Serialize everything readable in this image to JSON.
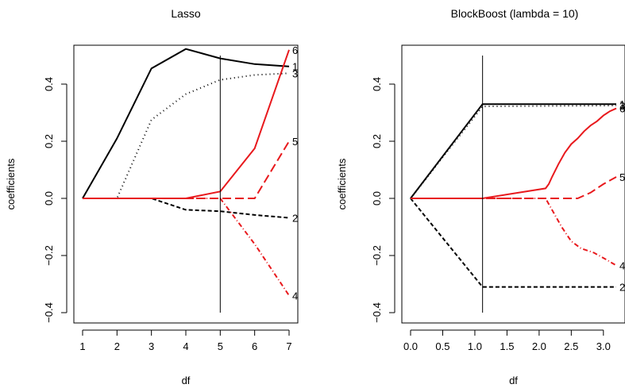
{
  "chart_data": [
    {
      "type": "line",
      "title": "Lasso",
      "xlabel": "df",
      "ylabel": "coefficients",
      "xlim": [
        1,
        7
      ],
      "ylim": [
        -0.4,
        0.5
      ],
      "xticks": [
        "1",
        "2",
        "3",
        "4",
        "5",
        "6",
        "7"
      ],
      "yticks": [
        "-0.4",
        "-0.2",
        "0.0",
        "0.2",
        "0.4"
      ],
      "vline": 5,
      "series": [
        {
          "label": "1",
          "color": "#000000",
          "dash": "solid",
          "points": [
            [
              1,
              0
            ],
            [
              2,
              0.21
            ],
            [
              3,
              0.455
            ],
            [
              4,
              0.523
            ],
            [
              5,
              0.49
            ],
            [
              6,
              0.47
            ],
            [
              7,
              0.462
            ]
          ]
        },
        {
          "label": "2",
          "color": "#000000",
          "dash": "dashed",
          "points": [
            [
              1,
              0
            ],
            [
              2,
              0
            ],
            [
              3,
              0
            ],
            [
              4,
              -0.04
            ],
            [
              5,
              -0.045
            ],
            [
              6,
              -0.058
            ],
            [
              7,
              -0.068
            ]
          ]
        },
        {
          "label": "3",
          "color": "#000000",
          "dash": "dotted",
          "points": [
            [
              1,
              0
            ],
            [
              2,
              0
            ],
            [
              3,
              0.275
            ],
            [
              4,
              0.365
            ],
            [
              5,
              0.415
            ],
            [
              6,
              0.432
            ],
            [
              7,
              0.438
            ]
          ]
        },
        {
          "label": "4",
          "color": "#e8191d",
          "dash": "dotdash",
          "points": [
            [
              1,
              0
            ],
            [
              2,
              0
            ],
            [
              3,
              0
            ],
            [
              4,
              0
            ],
            [
              5,
              0
            ],
            [
              6,
              -0.16
            ],
            [
              7,
              -0.34
            ]
          ]
        },
        {
          "label": "5",
          "color": "#e8191d",
          "dash": "longdash",
          "points": [
            [
              1,
              0
            ],
            [
              2,
              0
            ],
            [
              3,
              0
            ],
            [
              4,
              0
            ],
            [
              5,
              0
            ],
            [
              6,
              0
            ],
            [
              7,
              0.2
            ]
          ]
        },
        {
          "label": "6",
          "color": "#e8191d",
          "dash": "solid",
          "points": [
            [
              1,
              0
            ],
            [
              2,
              0
            ],
            [
              3,
              0
            ],
            [
              4,
              0
            ],
            [
              5,
              0.024
            ],
            [
              6,
              0.175
            ],
            [
              7,
              0.52
            ]
          ]
        }
      ]
    },
    {
      "type": "line",
      "title": "BlockBoost (lambda = 10)",
      "xlabel": "df",
      "ylabel": "coefficients",
      "xlim": [
        0,
        3.2
      ],
      "ylim": [
        -0.4,
        0.5
      ],
      "xticks": [
        "0.0",
        "0.5",
        "1.0",
        "1.5",
        "2.0",
        "2.5",
        "3.0"
      ],
      "yticks": [
        "-0.4",
        "-0.2",
        "0.0",
        "0.2",
        "0.4"
      ],
      "vline": 1.12,
      "series": [
        {
          "label": "1",
          "color": "#000000",
          "dash": "solid",
          "points": [
            [
              0,
              0
            ],
            [
              1.12,
              0.33
            ],
            [
              3.2,
              0.33
            ]
          ]
        },
        {
          "label": "2",
          "color": "#000000",
          "dash": "dashed",
          "points": [
            [
              0,
              0
            ],
            [
              1.12,
              -0.31
            ],
            [
              3.2,
              -0.31
            ]
          ]
        },
        {
          "label": "3",
          "color": "#000000",
          "dash": "dotted",
          "points": [
            [
              0,
              0
            ],
            [
              1.12,
              0.322
            ],
            [
              3.2,
              0.325
            ]
          ]
        },
        {
          "label": "4",
          "color": "#e8191d",
          "dash": "dotdash",
          "points": [
            [
              0,
              0
            ],
            [
              2.1,
              0
            ],
            [
              2.2,
              -0.04
            ],
            [
              2.35,
              -0.1
            ],
            [
              2.5,
              -0.15
            ],
            [
              2.65,
              -0.175
            ],
            [
              2.85,
              -0.19
            ],
            [
              3.05,
              -0.215
            ],
            [
              3.2,
              -0.235
            ]
          ]
        },
        {
          "label": "5",
          "color": "#e8191d",
          "dash": "longdash",
          "points": [
            [
              0,
              0
            ],
            [
              2.6,
              0
            ],
            [
              2.8,
              0.02
            ],
            [
              3.0,
              0.05
            ],
            [
              3.2,
              0.075
            ]
          ]
        },
        {
          "label": "6",
          "color": "#e8191d",
          "dash": "solid",
          "points": [
            [
              0,
              0
            ],
            [
              1.12,
              0
            ],
            [
              2.1,
              0.035
            ],
            [
              2.15,
              0.05
            ],
            [
              2.2,
              0.075
            ],
            [
              2.3,
              0.12
            ],
            [
              2.4,
              0.16
            ],
            [
              2.5,
              0.19
            ],
            [
              2.6,
              0.21
            ],
            [
              2.7,
              0.235
            ],
            [
              2.8,
              0.255
            ],
            [
              2.9,
              0.27
            ],
            [
              3.0,
              0.29
            ],
            [
              3.1,
              0.305
            ],
            [
              3.2,
              0.315
            ]
          ]
        }
      ]
    }
  ]
}
